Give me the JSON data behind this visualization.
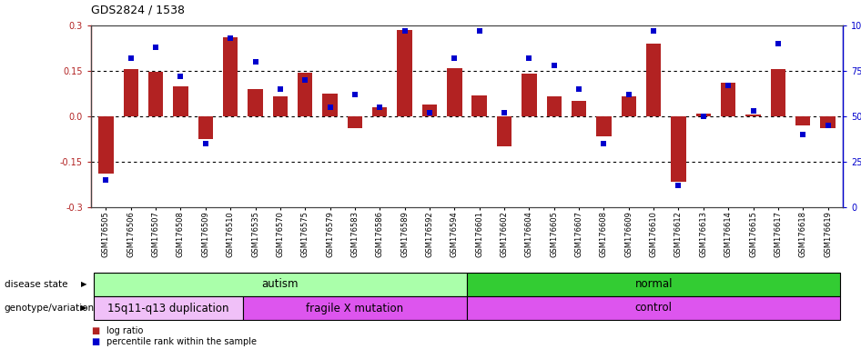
{
  "title": "GDS2824 / 1538",
  "samples": [
    "GSM176505",
    "GSM176506",
    "GSM176507",
    "GSM176508",
    "GSM176509",
    "GSM176510",
    "GSM176535",
    "GSM176570",
    "GSM176575",
    "GSM176579",
    "GSM176583",
    "GSM176586",
    "GSM176589",
    "GSM176592",
    "GSM176594",
    "GSM176601",
    "GSM176602",
    "GSM176604",
    "GSM176605",
    "GSM176607",
    "GSM176608",
    "GSM176609",
    "GSM176610",
    "GSM176612",
    "GSM176613",
    "GSM176614",
    "GSM176615",
    "GSM176617",
    "GSM176618",
    "GSM176619"
  ],
  "log_ratio": [
    -0.19,
    0.155,
    0.148,
    0.1,
    -0.075,
    0.26,
    0.09,
    0.065,
    0.145,
    0.075,
    -0.04,
    0.03,
    0.285,
    0.04,
    0.16,
    0.07,
    -0.1,
    0.14,
    0.065,
    0.05,
    -0.065,
    0.065,
    0.24,
    -0.215,
    0.01,
    0.11,
    0.005,
    0.155,
    -0.03,
    -0.04
  ],
  "percentile": [
    15,
    82,
    88,
    72,
    35,
    93,
    80,
    65,
    70,
    55,
    62,
    55,
    97,
    52,
    82,
    97,
    52,
    82,
    78,
    65,
    35,
    62,
    97,
    12,
    50,
    67,
    53,
    90,
    40,
    45
  ],
  "bar_color": "#b22222",
  "dot_color": "#0000cd",
  "ylim_left": [
    -0.3,
    0.3
  ],
  "ylim_right": [
    0,
    100
  ],
  "yticks_left": [
    -0.3,
    -0.15,
    0.0,
    0.15,
    0.3
  ],
  "yticks_right": [
    0,
    25,
    50,
    75,
    100
  ],
  "hline_vals": [
    -0.15,
    0.0,
    0.15
  ],
  "disease_state_groups": [
    {
      "label": "autism",
      "start": 0,
      "end": 15,
      "color": "#aaffaa"
    },
    {
      "label": "normal",
      "start": 15,
      "end": 30,
      "color": "#33cc33"
    }
  ],
  "genotype_groups": [
    {
      "label": "15q11-q13 duplication",
      "start": 0,
      "end": 6,
      "color": "#eeaaff"
    },
    {
      "label": "fragile X mutation",
      "start": 6,
      "end": 15,
      "color": "#dd55ee"
    },
    {
      "label": "control",
      "start": 15,
      "end": 30,
      "color": "#dd55ee"
    }
  ],
  "background_color": "#ffffff",
  "plot_bg_color": "#ffffff"
}
